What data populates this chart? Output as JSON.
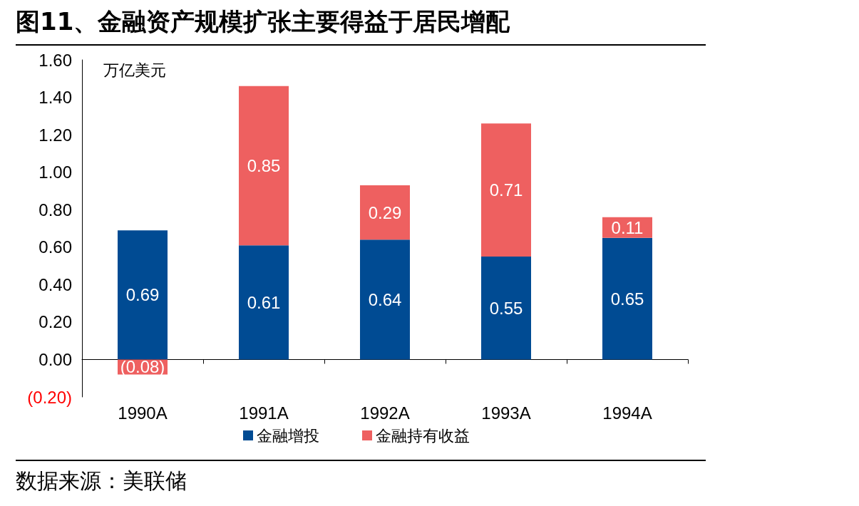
{
  "chart_data": {
    "type": "bar",
    "title": "图11、金融资产规模扩张主要得益于居民增配",
    "ylabel": "万亿美元",
    "annotations": [
      "数据来源：美联储"
    ],
    "categories": [
      "1990A",
      "1991A",
      "1992A",
      "1993A",
      "1994A"
    ],
    "stacked": true,
    "series": [
      {
        "name": "金融增投",
        "color": "#004b93",
        "values": [
          0.69,
          0.61,
          0.64,
          0.55,
          0.65
        ],
        "value_labels": [
          "0.69",
          "0.61",
          "0.64",
          "0.55",
          "0.65"
        ]
      },
      {
        "name": "金融持有收益",
        "color": "#ee6060",
        "values": [
          -0.08,
          0.85,
          0.29,
          0.71,
          0.11
        ],
        "value_labels": [
          "(0.08)",
          "0.85",
          "0.29",
          "0.71",
          "0.11"
        ]
      }
    ],
    "ylim": [
      -0.2,
      1.6
    ],
    "yticks": [
      {
        "value": -0.2,
        "label": "(0.20)"
      },
      {
        "value": 0,
        "label": "0.00"
      },
      {
        "value": 0.2,
        "label": "0.20"
      },
      {
        "value": 0.4,
        "label": "0.40"
      },
      {
        "value": 0.6,
        "label": "0.60"
      },
      {
        "value": 0.8,
        "label": "0.80"
      },
      {
        "value": 1.0,
        "label": "1.00"
      },
      {
        "value": 1.2,
        "label": "1.20"
      },
      {
        "value": 1.4,
        "label": "1.40"
      },
      {
        "value": 1.6,
        "label": "1.60"
      }
    ],
    "grid": false,
    "legend": "bottom"
  }
}
